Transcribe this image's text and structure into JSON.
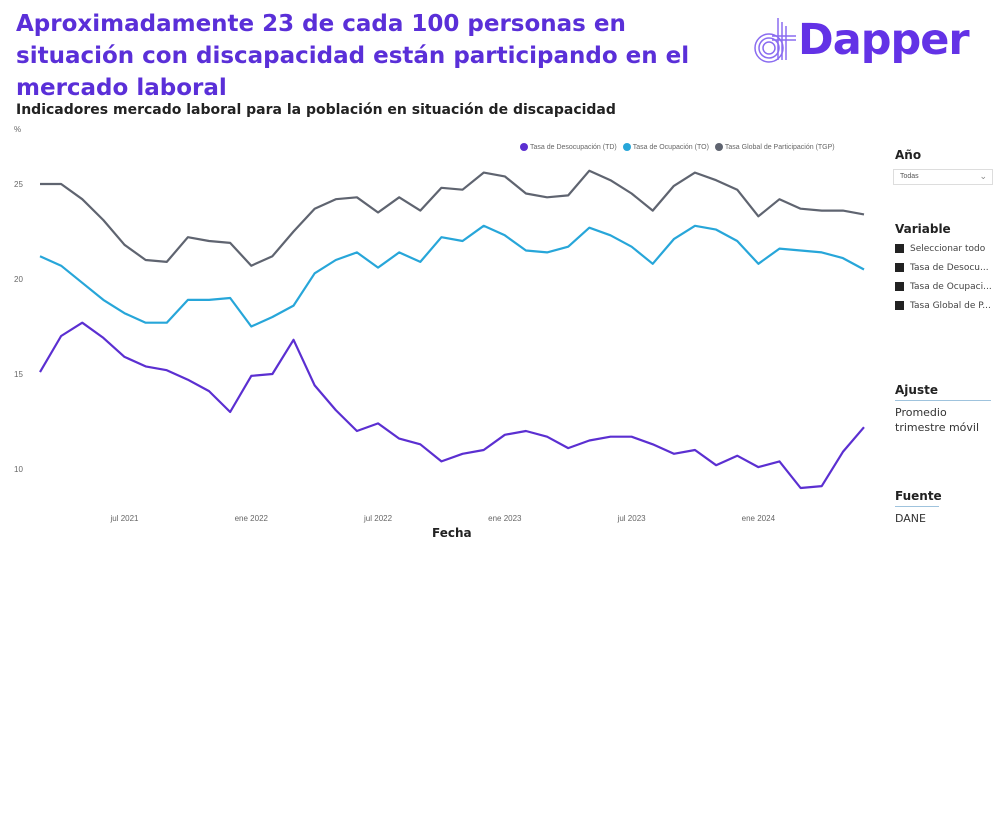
{
  "headline": "Aproximadamente 23 de cada 100 personas en situación con discapacidad están participando en el mercado laboral",
  "logo": {
    "text": "Dapper",
    "color": "#6332e6"
  },
  "filters": {
    "year": {
      "label": "Año",
      "value": "Todas"
    },
    "variable": {
      "label": "Variable",
      "options": [
        "Seleccionar todo",
        "Tasa de Desocu...",
        "Tasa de Ocupaci...",
        "Tasa Global de P..."
      ]
    },
    "adjust": {
      "label": "Ajuste",
      "value_line1": "Promedio",
      "value_line2": "trimestre móvil"
    },
    "source": {
      "label": "Fuente",
      "value": "DANE"
    }
  },
  "chart_data": {
    "type": "line",
    "title": "Indicadores mercado laboral para la población en situación de discapacidad",
    "xlabel": "Fecha",
    "ylabel": "%",
    "ylim": [
      8,
      28
    ],
    "yticks": [
      10,
      15,
      20,
      25
    ],
    "x_start": "mar 2021",
    "x_end": "jun 2024",
    "xtick_labels": [
      {
        "index": 4,
        "label": "jul 2021"
      },
      {
        "index": 10,
        "label": "ene 2022"
      },
      {
        "index": 16,
        "label": "jul 2022"
      },
      {
        "index": 22,
        "label": "ene 2023"
      },
      {
        "index": 28,
        "label": "jul 2023"
      },
      {
        "index": 34,
        "label": "ene 2024"
      }
    ],
    "legend_position": "top-right",
    "grid": false,
    "series": [
      {
        "name": "Tasa de Desocupación (TD)",
        "color": "#5b2fd1",
        "values": [
          15.1,
          17.0,
          17.7,
          16.9,
          15.9,
          15.4,
          15.2,
          14.7,
          14.1,
          13.0,
          14.9,
          15.0,
          16.8,
          14.4,
          13.1,
          12.0,
          12.4,
          11.6,
          11.3,
          10.4,
          10.8,
          11.0,
          11.8,
          12.0,
          11.7,
          11.1,
          11.5,
          11.7,
          11.7,
          11.3,
          10.8,
          11.0,
          10.2,
          10.7,
          10.1,
          10.4,
          9.0,
          9.1,
          10.9,
          12.2
        ]
      },
      {
        "name": "Tasa de Ocupación (TO)",
        "color": "#27a6d9",
        "values": [
          21.2,
          20.7,
          19.8,
          18.9,
          18.2,
          17.7,
          17.7,
          18.9,
          18.9,
          19.0,
          17.5,
          18.0,
          18.6,
          20.3,
          21.0,
          21.4,
          20.6,
          21.4,
          20.9,
          22.2,
          22.0,
          22.8,
          22.3,
          21.5,
          21.4,
          21.7,
          22.7,
          22.3,
          21.7,
          20.8,
          22.1,
          22.8,
          22.6,
          22.0,
          20.8,
          21.6,
          21.5,
          21.4,
          21.1,
          20.5
        ]
      },
      {
        "name": "Tasa Global de Participación (TGP)",
        "color": "#5f6470",
        "values": [
          25.0,
          25.0,
          24.2,
          23.1,
          21.8,
          21.0,
          20.9,
          22.2,
          22.0,
          21.9,
          20.7,
          21.2,
          22.5,
          23.7,
          24.2,
          24.3,
          23.5,
          24.3,
          23.6,
          24.8,
          24.7,
          25.6,
          25.4,
          24.5,
          24.3,
          24.4,
          25.7,
          25.2,
          24.5,
          23.6,
          24.9,
          25.6,
          25.2,
          24.7,
          23.3,
          24.2,
          23.7,
          23.6,
          23.6,
          23.4
        ]
      }
    ]
  }
}
